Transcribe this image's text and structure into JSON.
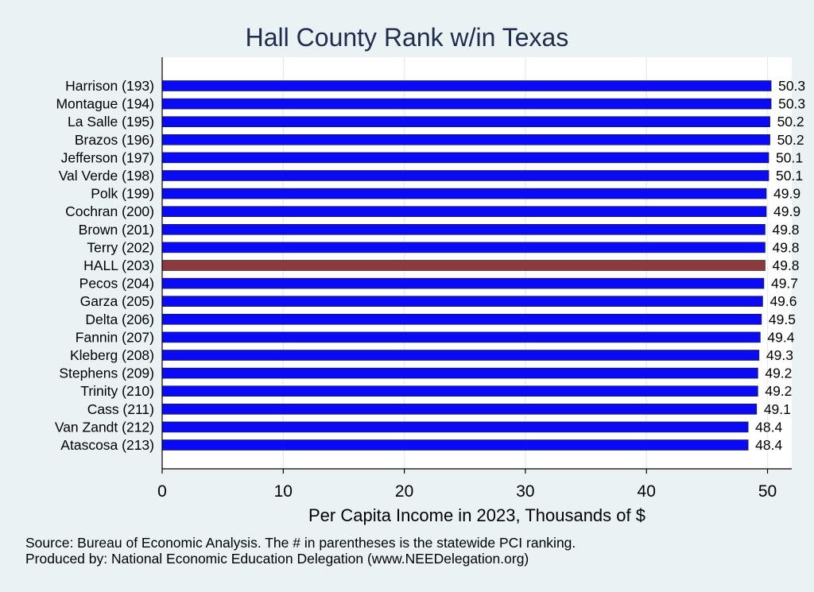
{
  "chart_data": {
    "type": "bar",
    "orientation": "horizontal",
    "title": "Hall County Rank w/in Texas",
    "xlabel": "Per Capita Income in 2023, Thousands of $",
    "ylabel": "",
    "xlim": [
      0,
      52
    ],
    "xticks": [
      "0",
      "10",
      "20",
      "30",
      "40",
      "50"
    ],
    "grid": true,
    "categories": [
      "Harrison (193)",
      "Montague (194)",
      "La Salle (195)",
      "Brazos (196)",
      "Jefferson (197)",
      "Val Verde (198)",
      "Polk (199)",
      "Cochran (200)",
      "Brown (201)",
      "Terry (202)",
      "HALL (203)",
      "Pecos (204)",
      "Garza (205)",
      "Delta (206)",
      "Fannin (207)",
      "Kleberg (208)",
      "Stephens (209)",
      "Trinity (210)",
      "Cass (211)",
      "Van Zandt (212)",
      "Atascosa (213)"
    ],
    "values": [
      50.3,
      50.3,
      50.2,
      50.2,
      50.1,
      50.1,
      49.9,
      49.9,
      49.8,
      49.8,
      49.8,
      49.7,
      49.6,
      49.5,
      49.4,
      49.3,
      49.2,
      49.2,
      49.1,
      48.4,
      48.4
    ],
    "value_labels": [
      "50.3",
      "50.3",
      "50.2",
      "50.2",
      "50.1",
      "50.1",
      "49.9",
      "49.9",
      "49.8",
      "49.8",
      "49.8",
      "49.7",
      "49.6",
      "49.5",
      "49.4",
      "49.3",
      "49.2",
      "49.2",
      "49.1",
      "48.4",
      "48.4"
    ],
    "highlight_index": 10,
    "colors": {
      "bar": "#0a0af5",
      "highlight": "#8c3a3e",
      "plot_bg": "#ffffff",
      "page_bg": "#eaf2f3",
      "title": "#1e2d4f"
    }
  },
  "notes": {
    "source": "Source: Bureau of Economic Analysis. The # in parentheses is the statewide PCI ranking.",
    "produced": "Produced by: National Economic Education Delegation (www.NEEDelegation.org)"
  }
}
